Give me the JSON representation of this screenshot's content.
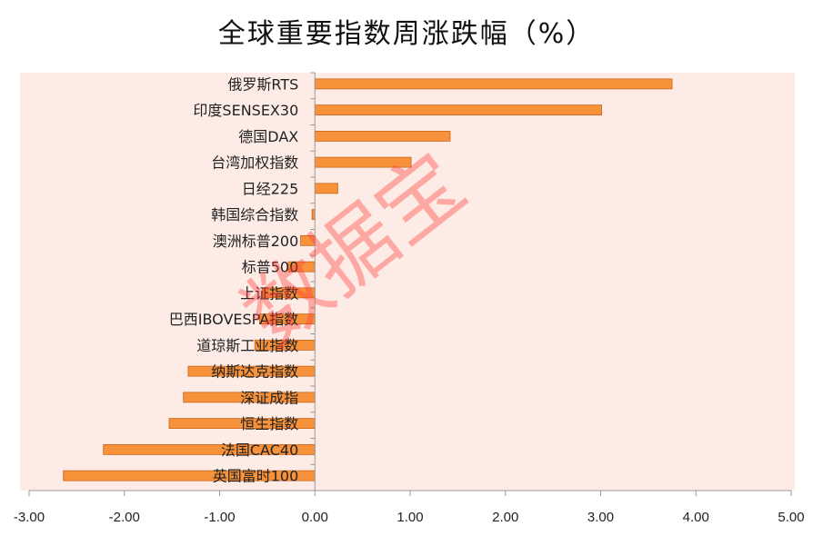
{
  "chart_data": {
    "type": "bar",
    "orientation": "horizontal",
    "title": "全球重要指数周涨跌幅（%）",
    "categories": [
      "俄罗斯RTS",
      "印度SENSEX30",
      "德国DAX",
      "台湾加权指数",
      "日经225",
      "韩国综合指数",
      "澳洲标普200",
      "标普500",
      "上证指数",
      "巴西IBOVESPA指数",
      "道琼斯工业指数",
      "纳斯达克指数",
      "深证成指",
      "恒生指数",
      "法国CAC40",
      "英国富时100"
    ],
    "values": [
      3.75,
      3.01,
      1.42,
      1.01,
      0.24,
      -0.03,
      -0.15,
      -0.28,
      -0.55,
      -0.58,
      -0.63,
      -1.33,
      -1.38,
      -1.53,
      -2.22,
      -2.64
    ],
    "xlim": [
      -3,
      5
    ],
    "xticks": [
      "-3.00",
      "-2.00",
      "-1.00",
      "0.00",
      "1.00",
      "2.00",
      "3.00",
      "4.00",
      "5.00"
    ],
    "xlabel": "",
    "ylabel": "",
    "grid": false,
    "colors": {
      "bar_fill": "#f7923a",
      "bar_stroke": "#c8641a",
      "plot_background": "#fdece6"
    }
  },
  "watermark": "数据宝"
}
